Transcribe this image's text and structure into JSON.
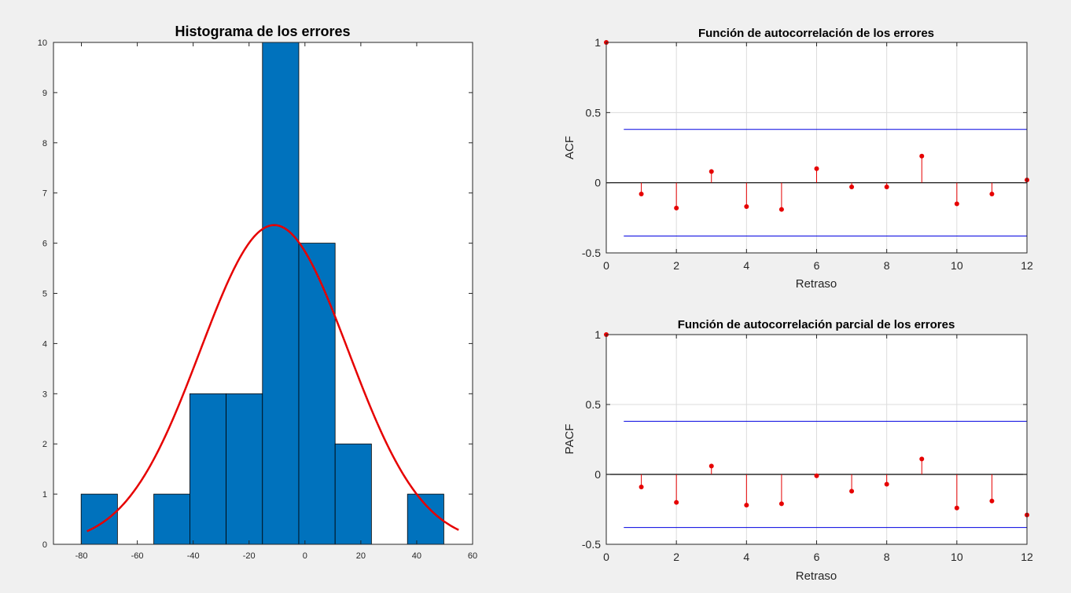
{
  "chart_data": [
    {
      "type": "bar",
      "subtype": "histogram",
      "title": "Histograma de los errores",
      "xlabel": "",
      "ylabel": "",
      "xlim": [
        -90,
        60
      ],
      "ylim": [
        0,
        10
      ],
      "xticks": [
        -80,
        -60,
        -40,
        -20,
        0,
        20,
        40,
        60
      ],
      "yticks": [
        0,
        1,
        2,
        3,
        4,
        5,
        6,
        7,
        8,
        9,
        10
      ],
      "bin_edges": [
        -80.1,
        -67.1,
        -54.1,
        -41.2,
        -28.2,
        -15.2,
        -2.2,
        10.8,
        23.8,
        36.7,
        49.7
      ],
      "counts": [
        1,
        0,
        1,
        3,
        3,
        10,
        6,
        2,
        0,
        1
      ],
      "bar_color": "#0072bd",
      "fit_curve": {
        "type": "normal",
        "mean": -11,
        "std": 26.5,
        "peak": 6.36,
        "x_range": [
          -78,
          55
        ],
        "color": "#e60000"
      },
      "grid": false
    },
    {
      "type": "stem",
      "title": "Función de autocorrelación de los errores",
      "xlabel": "Retraso",
      "ylabel": "ACF",
      "xlim": [
        0,
        12
      ],
      "ylim": [
        -0.5,
        1
      ],
      "xticks": [
        0,
        2,
        4,
        6,
        8,
        10,
        12
      ],
      "yticks": [
        -0.5,
        0,
        0.5,
        1
      ],
      "x": [
        0,
        1,
        2,
        3,
        4,
        5,
        6,
        7,
        8,
        9,
        10,
        11,
        12
      ],
      "values": [
        1,
        -0.08,
        -0.18,
        0.08,
        -0.17,
        -0.19,
        0.1,
        -0.03,
        -0.03,
        0.19,
        -0.15,
        -0.08,
        0.02
      ],
      "bounds": [
        0.38,
        -0.38
      ],
      "bounds_x_range": [
        0.5,
        12
      ],
      "stem_color": "#e60000",
      "bound_color": "#0000e0",
      "grid": true
    },
    {
      "type": "stem",
      "title": "Función de autocorrelación parcial de los errores",
      "xlabel": "Retraso",
      "ylabel": "PACF",
      "xlim": [
        0,
        12
      ],
      "ylim": [
        -0.5,
        1
      ],
      "xticks": [
        0,
        2,
        4,
        6,
        8,
        10,
        12
      ],
      "yticks": [
        -0.5,
        0,
        0.5,
        1
      ],
      "x": [
        0,
        1,
        2,
        3,
        4,
        5,
        6,
        7,
        8,
        9,
        10,
        11,
        12
      ],
      "values": [
        1,
        -0.09,
        -0.2,
        0.06,
        -0.22,
        -0.21,
        -0.01,
        -0.12,
        -0.07,
        0.11,
        -0.24,
        -0.19,
        -0.29
      ],
      "bounds": [
        0.38,
        -0.38
      ],
      "bounds_x_range": [
        0.5,
        12
      ],
      "stem_color": "#e60000",
      "bound_color": "#0000e0",
      "grid": true
    }
  ]
}
